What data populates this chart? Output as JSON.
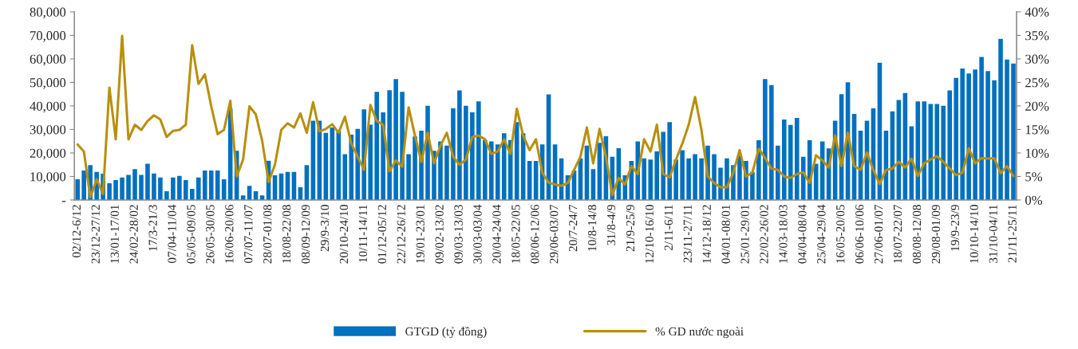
{
  "chart_data": {
    "type": "bar",
    "categories": [
      "02/12-6/12",
      null,
      null,
      "23/12-27/12",
      null,
      null,
      "13/01-17/01",
      null,
      null,
      "24/02-28/02",
      null,
      null,
      "17/3-21/3",
      null,
      null,
      "07/04-11/04",
      null,
      null,
      "05/05-09/05",
      null,
      null,
      "26/05-30/05",
      null,
      null,
      "16/06-20/06",
      null,
      null,
      "07/07-11/07",
      null,
      null,
      "28/07-01/08",
      null,
      null,
      "18/08-22/08",
      null,
      null,
      "08/09-12/09",
      null,
      null,
      "29/9-3/10",
      null,
      null,
      "20/10-24/10",
      null,
      null,
      "10/11-14/11",
      null,
      null,
      "01/12-05/12",
      null,
      null,
      "22/12-26/12",
      null,
      null,
      "19/01-23/01",
      null,
      null,
      "09/02-13/02",
      null,
      null,
      "09/03-13/03",
      null,
      null,
      "30/03-03/04",
      null,
      null,
      "20/04-24/04",
      null,
      null,
      "18/05-22/05",
      null,
      null,
      "08/06-12/06",
      null,
      null,
      "29/06-03/07",
      null,
      null,
      "20/7-24/7",
      null,
      null,
      "10/8-14/8",
      null,
      null,
      "31/8-4/9",
      null,
      null,
      "21/9-25/9",
      null,
      null,
      "12/10-16/10",
      null,
      null,
      "2/11-6/11",
      null,
      null,
      "23/11-27/11",
      null,
      null,
      "14/12-18/12",
      null,
      null,
      "04/01-08/01",
      null,
      null,
      "25/01-29/01",
      null,
      null,
      "22/02-26/02",
      null,
      null,
      "14/03-18/03",
      null,
      null,
      "04/04-08/04",
      null,
      null,
      "25/04-29/04",
      null,
      null,
      "16/05-20/05",
      null,
      null,
      "06/06-10/06",
      null,
      null,
      "27/06-01/07",
      null,
      null,
      "18/07-22/07",
      null,
      null,
      "08/08-12/08",
      null,
      null,
      "29/08-01/09",
      null,
      null,
      "19/9-23/9",
      null,
      null,
      "10/10-14/10",
      null,
      null,
      "31/10-04/11",
      null,
      null,
      "21/11-25/11"
    ],
    "series": [
      {
        "name": "GTGD (tỷ đồng)",
        "color": "#0070c0",
        "values": [
          8800,
          12500,
          14800,
          11900,
          11200,
          7100,
          8500,
          9600,
          10700,
          13100,
          10700,
          15400,
          11300,
          9600,
          3700,
          9600,
          10200,
          8500,
          4700,
          9600,
          12500,
          12500,
          12500,
          8800,
          38800,
          20900,
          1900,
          6000,
          3700,
          1900,
          16700,
          10500,
          11300,
          11900,
          11900,
          5400,
          14800,
          33700,
          33700,
          28500,
          30800,
          29500,
          19500,
          27800,
          30200,
          38500,
          32000,
          46000,
          37300,
          46700,
          51400,
          46000,
          19500,
          27000,
          29500,
          40100,
          20900,
          24900,
          23100,
          39000,
          46600,
          40100,
          37300,
          41900,
          25500,
          24900,
          23600,
          28400,
          25500,
          33100,
          28400,
          16600,
          16600,
          23600,
          44900,
          23600,
          17700,
          10500,
          12500,
          17700,
          23100,
          13100,
          24300,
          27100,
          18400,
          22000,
          10500,
          16600,
          24900,
          17700,
          17200,
          20700,
          29000,
          33100,
          17200,
          21200,
          17700,
          19500,
          17700,
          23100,
          19500,
          13700,
          17700,
          14800,
          18900,
          16600,
          11900,
          25400,
          51400,
          48900,
          23100,
          34200,
          31900,
          34900,
          18400,
          25400,
          15400,
          24900,
          21900,
          33700,
          45000,
          50100,
          36600,
          29500,
          33700,
          39000,
          58400,
          29500,
          37700,
          42500,
          45500,
          31300,
          41900,
          41900,
          40800,
          40800,
          40100,
          46600,
          51900,
          55900,
          53800,
          55500,
          60800,
          54800,
          50900,
          68500,
          59700,
          58000
        ]
      },
      {
        "name": "% GD nước ngoài",
        "type": "line",
        "axis": "y2",
        "color": "#b8900f",
        "values": [
          11.8,
          10.3,
          0.6,
          4.4,
          1.3,
          23.9,
          12.9,
          34.9,
          12.9,
          16.0,
          14.9,
          16.8,
          18.0,
          17.1,
          13.4,
          14.7,
          14.9,
          16.0,
          32.9,
          24.7,
          26.7,
          19.9,
          14.0,
          14.9,
          21.1,
          5.0,
          8.6,
          19.9,
          18.2,
          12.6,
          3.8,
          7.5,
          14.9,
          16.3,
          15.4,
          18.4,
          14.3,
          20.8,
          14.6,
          15.1,
          16.1,
          14.3,
          17.7,
          12.0,
          9.2,
          6.4,
          20.2,
          16.8,
          16.0,
          6.1,
          8.4,
          7.1,
          19.7,
          13.7,
          8.1,
          14.3,
          7.8,
          11.5,
          14.3,
          9.2,
          7.5,
          8.6,
          13.4,
          13.7,
          12.9,
          9.8,
          10.3,
          12.9,
          9.8,
          19.4,
          13.7,
          10.6,
          12.9,
          5.8,
          3.7,
          3.3,
          3.0,
          3.6,
          6.4,
          9.2,
          15.4,
          7.8,
          15.1,
          9.2,
          1.0,
          4.7,
          3.3,
          7.2,
          5.5,
          12.9,
          10.3,
          16.0,
          5.5,
          4.8,
          8.6,
          12.0,
          16.0,
          21.9,
          14.9,
          5.0,
          3.6,
          2.7,
          2.7,
          5.8,
          10.6,
          5.0,
          5.8,
          10.9,
          8.9,
          6.7,
          6.4,
          5.0,
          4.7,
          5.5,
          5.9,
          3.6,
          9.5,
          8.4,
          6.9,
          13.7,
          7.2,
          14.3,
          7.2,
          6.4,
          10.1,
          6.4,
          3.4,
          6.4,
          6.7,
          8.1,
          6.9,
          8.8,
          5.1,
          7.8,
          8.6,
          9.3,
          8.1,
          6.7,
          5.3,
          5.8,
          11.0,
          7.8,
          8.9,
          8.8,
          8.9,
          5.7,
          7.2,
          5.1
        ]
      }
    ],
    "ylim": [
      0,
      80000
    ],
    "yticks": [
      {
        "value": 0,
        "label": "-"
      },
      {
        "value": 10000,
        "label": "10,000"
      },
      {
        "value": 20000,
        "label": "20,000"
      },
      {
        "value": 30000,
        "label": "30,000"
      },
      {
        "value": 40000,
        "label": "40,000"
      },
      {
        "value": 50000,
        "label": "50,000"
      },
      {
        "value": 60000,
        "label": "60,000"
      },
      {
        "value": 70000,
        "label": "70,000"
      },
      {
        "value": 80000,
        "label": "80,000"
      }
    ],
    "y2lim": [
      0,
      40
    ],
    "y2ticks": [
      {
        "value": 0,
        "label": "0%"
      },
      {
        "value": 5,
        "label": "5%"
      },
      {
        "value": 10,
        "label": "10%"
      },
      {
        "value": 15,
        "label": "15%"
      },
      {
        "value": 20,
        "label": "20%"
      },
      {
        "value": 25,
        "label": "25%"
      },
      {
        "value": 30,
        "label": "30%"
      },
      {
        "value": 35,
        "label": "35%"
      },
      {
        "value": 40,
        "label": "40%"
      }
    ],
    "grid": false,
    "legend": "bottom"
  }
}
